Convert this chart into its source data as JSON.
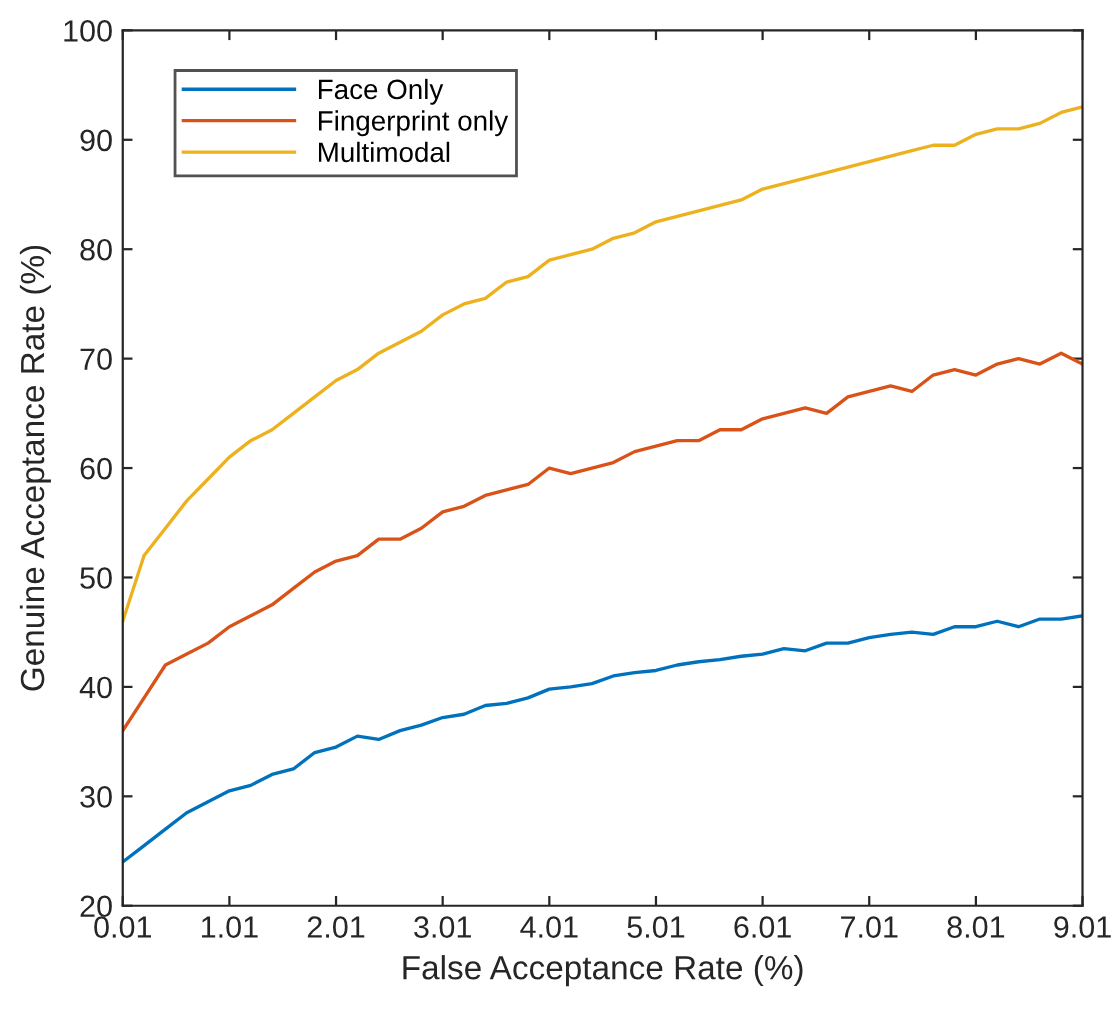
{
  "chart_data": {
    "type": "line",
    "xlabel": "False Acceptance Rate (%)",
    "ylabel": "Genuine Acceptance Rate (%)",
    "x": [
      0.01,
      0.21,
      0.41,
      0.61,
      0.81,
      1.01,
      1.21,
      1.41,
      1.61,
      1.81,
      2.01,
      2.21,
      2.41,
      2.61,
      2.81,
      3.01,
      3.21,
      3.41,
      3.61,
      3.81,
      4.01,
      4.21,
      4.41,
      4.61,
      4.81,
      5.01,
      5.21,
      5.41,
      5.61,
      5.81,
      6.01,
      6.21,
      6.41,
      6.61,
      6.81,
      7.01,
      7.21,
      7.41,
      7.61,
      7.81,
      8.01,
      8.21,
      8.41,
      8.61,
      8.81,
      9.01
    ],
    "series": [
      {
        "name": "Face Only",
        "color": "#0072bd",
        "values": [
          24,
          25.5,
          27,
          28.5,
          29.5,
          30.5,
          31,
          32,
          32.5,
          34,
          34.5,
          35.5,
          35.2,
          36,
          36.5,
          37.2,
          37.5,
          38.3,
          38.5,
          39,
          39.8,
          40,
          40.3,
          41,
          41.3,
          41.5,
          42,
          42.3,
          42.5,
          42.8,
          43,
          43.5,
          43.3,
          44,
          44,
          44.5,
          44.8,
          45,
          44.8,
          45.5,
          45.5,
          46,
          45.5,
          46.2,
          46.2,
          46.5
        ]
      },
      {
        "name": "Fingerprint only",
        "color": "#d95319",
        "values": [
          36,
          39,
          42,
          43,
          44,
          45.5,
          46.5,
          47.5,
          49,
          50.5,
          51.5,
          52,
          53.5,
          53.5,
          54.5,
          56,
          56.5,
          57.5,
          58,
          58.5,
          60,
          59.5,
          60,
          60.5,
          61.5,
          62,
          62.5,
          62.5,
          63.5,
          63.5,
          64.5,
          65,
          65.5,
          65,
          66.5,
          67,
          67.5,
          67,
          68.5,
          69,
          68.5,
          69.5,
          70,
          69.5,
          70.5,
          69.5
        ]
      },
      {
        "name": "Multimodal",
        "color": "#edb120",
        "values": [
          46,
          52,
          54.5,
          57,
          59,
          61,
          62.5,
          63.5,
          65,
          66.5,
          68,
          69,
          70.5,
          71.5,
          72.5,
          74,
          75,
          75.5,
          77,
          77.5,
          79,
          79.5,
          80,
          81,
          81.5,
          82.5,
          83,
          83.5,
          84,
          84.5,
          85.5,
          86,
          86.5,
          87,
          87.5,
          88,
          88.5,
          89,
          89.5,
          89.5,
          90.5,
          91,
          91,
          91.5,
          92.5,
          93
        ]
      }
    ],
    "xlim": [
      0.01,
      9.01
    ],
    "xticks": [
      0.01,
      1.01,
      2.01,
      3.01,
      4.01,
      5.01,
      6.01,
      7.01,
      8.01,
      9.01
    ],
    "ylim": [
      20,
      100
    ],
    "yticks": [
      20,
      30,
      40,
      50,
      60,
      70,
      80,
      90,
      100
    ],
    "legend": "top left",
    "grid": false,
    "marker": "none",
    "line_style": "solid"
  }
}
